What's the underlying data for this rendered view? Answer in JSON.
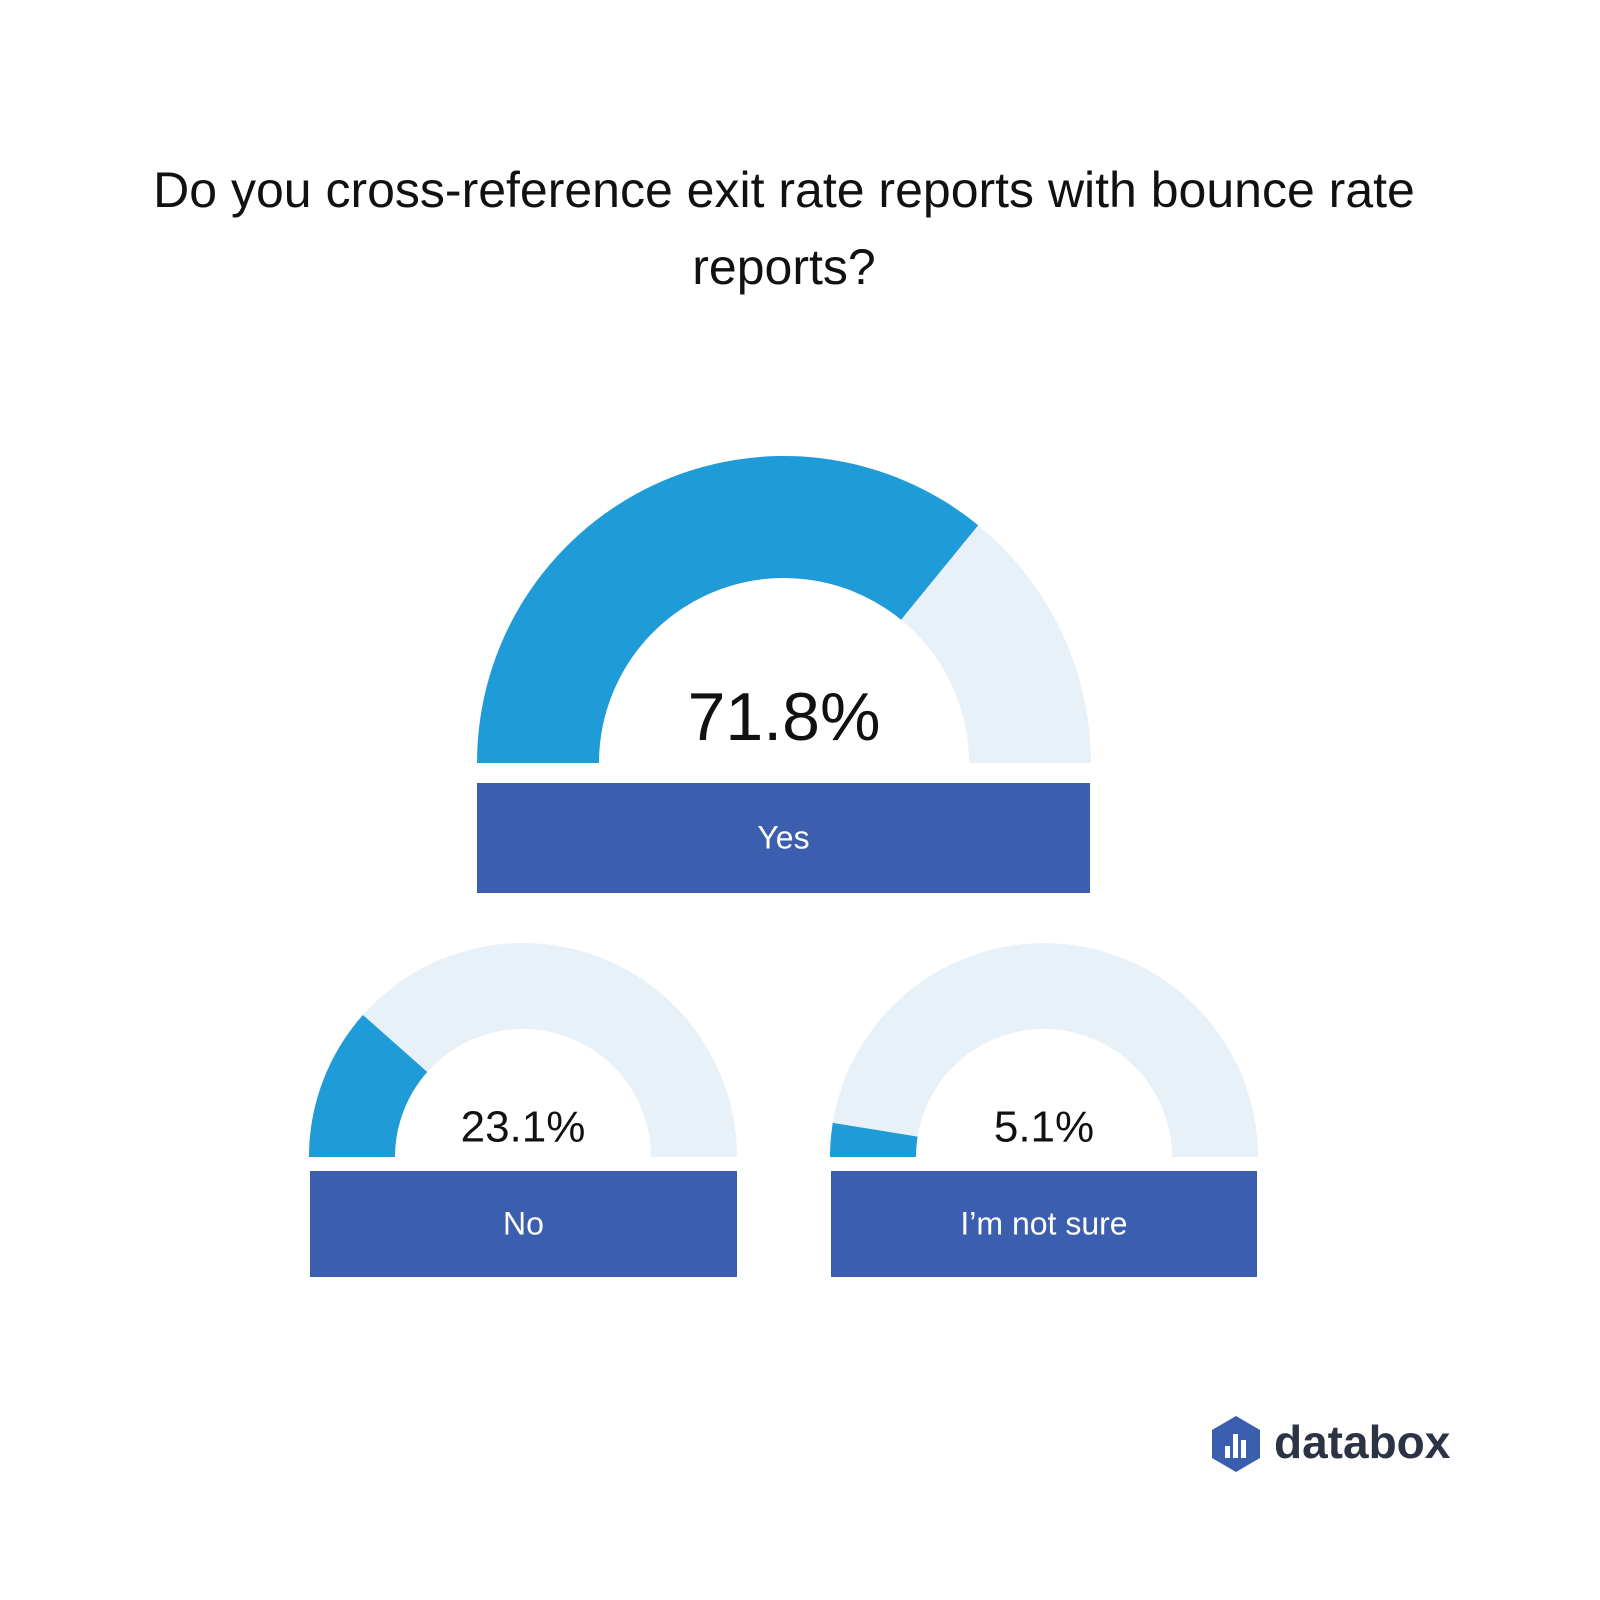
{
  "chart_data": {
    "type": "gauge",
    "title": "Do you cross-reference exit rate reports with bounce rate reports?",
    "categories": [
      "Yes",
      "No",
      "I’m not sure"
    ],
    "values": [
      71.8,
      23.1,
      5.1
    ],
    "value_labels": [
      "71.8%",
      "23.1%",
      "5.1%"
    ],
    "ylim": [
      0,
      100
    ],
    "color": "#1f9bd7",
    "track_color": "#e8f1f7",
    "label_color": "#3b5eae"
  },
  "brand": "databox"
}
